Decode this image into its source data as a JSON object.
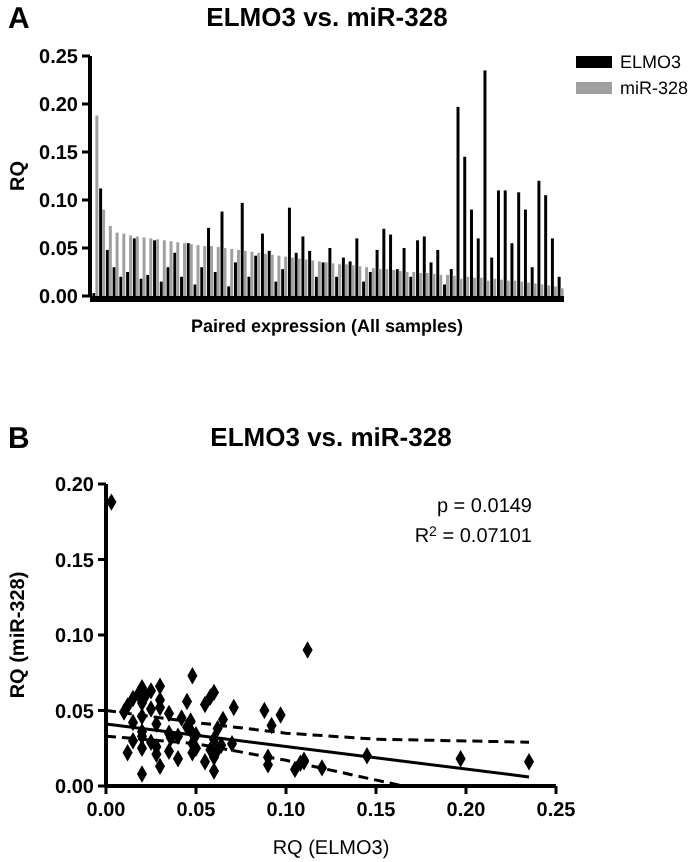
{
  "chart_data": [
    {
      "type": "bar",
      "title": "ELMO3 vs. miR-328",
      "xlabel": "Paired expression (All samples)",
      "ylabel": "RQ",
      "annotations": [
        "A"
      ],
      "categories": [
        null,
        null,
        null,
        null,
        null,
        null,
        null,
        null,
        null,
        null,
        null,
        null,
        null,
        null,
        null,
        null,
        null,
        null,
        null,
        null,
        null,
        null,
        null,
        null,
        null,
        null,
        null,
        null,
        null,
        null,
        null,
        null,
        null,
        null,
        null,
        null,
        null,
        null,
        null,
        null,
        null,
        null,
        null,
        null,
        null,
        null,
        null,
        null,
        null,
        null,
        null,
        null,
        null,
        null,
        null,
        null,
        null,
        null,
        null,
        null,
        null,
        null,
        null,
        null,
        null,
        null,
        null,
        null,
        null,
        null
      ],
      "series": [
        {
          "name": "ELMO3",
          "color": "#000000",
          "values": [
            0.003,
            0.112,
            0.048,
            0.03,
            0.02,
            0.025,
            0.06,
            0.018,
            0.022,
            0.058,
            0.015,
            0.03,
            0.045,
            0.02,
            0.055,
            0.012,
            0.03,
            0.071,
            0.025,
            0.088,
            0.01,
            0.035,
            0.097,
            0.02,
            0.042,
            0.065,
            0.047,
            0.015,
            0.028,
            0.092,
            0.045,
            0.062,
            0.047,
            0.02,
            0.035,
            0.05,
            0.02,
            0.04,
            0.036,
            0.06,
            0.015,
            0.025,
            0.048,
            0.07,
            0.064,
            0.028,
            0.05,
            0.02,
            0.058,
            0.062,
            0.035,
            0.048,
            0.012,
            0.028,
            0.197,
            0.145,
            0.09,
            0.06,
            0.235,
            0.04,
            0.11,
            0.11,
            0.055,
            0.108,
            0.09,
            0.03,
            0.12,
            0.105,
            0.06,
            0.02
          ]
        },
        {
          "name": "miR-328",
          "color": "#a0a0a0",
          "values": [
            0.188,
            0.09,
            0.073,
            0.066,
            0.065,
            0.063,
            0.062,
            0.061,
            0.06,
            0.059,
            0.058,
            0.057,
            0.056,
            0.055,
            0.054,
            0.053,
            0.052,
            0.052,
            0.051,
            0.05,
            0.049,
            0.048,
            0.047,
            0.046,
            0.045,
            0.044,
            0.043,
            0.042,
            0.041,
            0.04,
            0.039,
            0.038,
            0.037,
            0.036,
            0.035,
            0.034,
            0.033,
            0.033,
            0.032,
            0.031,
            0.03,
            0.029,
            0.028,
            0.028,
            0.027,
            0.026,
            0.025,
            0.025,
            0.024,
            0.024,
            0.023,
            0.022,
            0.022,
            0.021,
            0.018,
            0.02,
            0.019,
            0.019,
            0.016,
            0.018,
            0.017,
            0.016,
            0.016,
            0.015,
            0.014,
            0.013,
            0.012,
            0.011,
            0.01,
            0.008
          ]
        }
      ],
      "ylim": [
        0,
        0.25
      ],
      "yticks": [
        "0.00",
        0.05,
        "0.10",
        0.15,
        "0.20",
        0.25
      ],
      "tick_labels": "y",
      "legend": "top right"
    },
    {
      "type": "scatter",
      "title": "ELMO3 vs. miR-328",
      "xlabel": "RQ (ELMO3)",
      "ylabel": "RQ (miR-328)",
      "annotations": [
        "B",
        "p = 0.0149",
        "R$^{2}$ = 0.07101"
      ],
      "marker": "diamond",
      "series": [
        {
          "color": "#000000",
          "x": [
            0.003,
            0.112,
            0.048,
            0.03,
            0.02,
            0.025,
            0.06,
            0.018,
            0.022,
            0.058,
            0.015,
            0.03,
            0.045,
            0.02,
            0.055,
            0.012,
            0.03,
            0.071,
            0.025,
            0.088,
            0.01,
            0.035,
            0.097,
            0.02,
            0.042,
            0.065,
            0.047,
            0.015,
            0.028,
            0.092,
            0.045,
            0.062,
            0.047,
            0.02,
            0.035,
            0.05,
            0.02,
            0.04,
            0.036,
            0.06,
            0.015,
            0.025,
            0.048,
            0.07,
            0.064,
            0.028,
            0.05,
            0.02,
            0.058,
            0.062,
            0.035,
            0.048,
            0.012,
            0.028,
            0.197,
            0.145,
            0.09,
            0.06,
            0.235,
            0.04,
            0.11,
            0.11,
            0.055,
            0.108,
            0.09,
            0.03,
            0.12,
            0.105,
            0.06,
            0.02
          ],
          "values": [
            0.188,
            0.09,
            0.073,
            0.066,
            0.065,
            0.063,
            0.062,
            0.061,
            0.06,
            0.059,
            0.058,
            0.057,
            0.056,
            0.055,
            0.054,
            0.053,
            0.052,
            0.052,
            0.051,
            0.05,
            0.049,
            0.048,
            0.047,
            0.046,
            0.045,
            0.044,
            0.043,
            0.042,
            0.041,
            0.04,
            0.039,
            0.038,
            0.037,
            0.036,
            0.035,
            0.034,
            0.033,
            0.033,
            0.032,
            0.031,
            0.03,
            0.029,
            0.028,
            0.028,
            0.027,
            0.026,
            0.025,
            0.025,
            0.024,
            0.024,
            0.023,
            0.022,
            0.022,
            0.021,
            0.018,
            0.02,
            0.019,
            0.019,
            0.016,
            0.018,
            0.017,
            0.016,
            0.016,
            0.015,
            0.014,
            0.013,
            0.012,
            0.011,
            0.01,
            0.008
          ]
        },
        {
          "type": "line",
          "color": "#000000",
          "line_style": "solid",
          "marker": "none",
          "x": [
            0,
            0.235
          ],
          "values": [
            0.041,
            0.006
          ]
        },
        {
          "type": "line",
          "color": "#000000",
          "line_style": "dashed",
          "marker": "none",
          "x": [
            0,
            0.05,
            0.1,
            0.15,
            0.235
          ],
          "values": [
            0.05,
            0.042,
            0.035,
            0.031,
            0.029
          ]
        },
        {
          "type": "line",
          "color": "#000000",
          "line_style": "dashed",
          "marker": "none",
          "x": [
            0,
            0.05,
            0.1,
            0.165
          ],
          "values": [
            0.033,
            0.028,
            0.017,
            0
          ]
        }
      ],
      "xlim": [
        0,
        0.25
      ],
      "xticks": [
        "0.00",
        0.05,
        "0.10",
        0.15,
        "0.20",
        0.25
      ],
      "ylim": [
        0,
        0.2
      ],
      "yticks": [
        "0.00",
        0.05,
        "0.10",
        0.15,
        "0.20"
      ],
      "legend": false
    }
  ]
}
